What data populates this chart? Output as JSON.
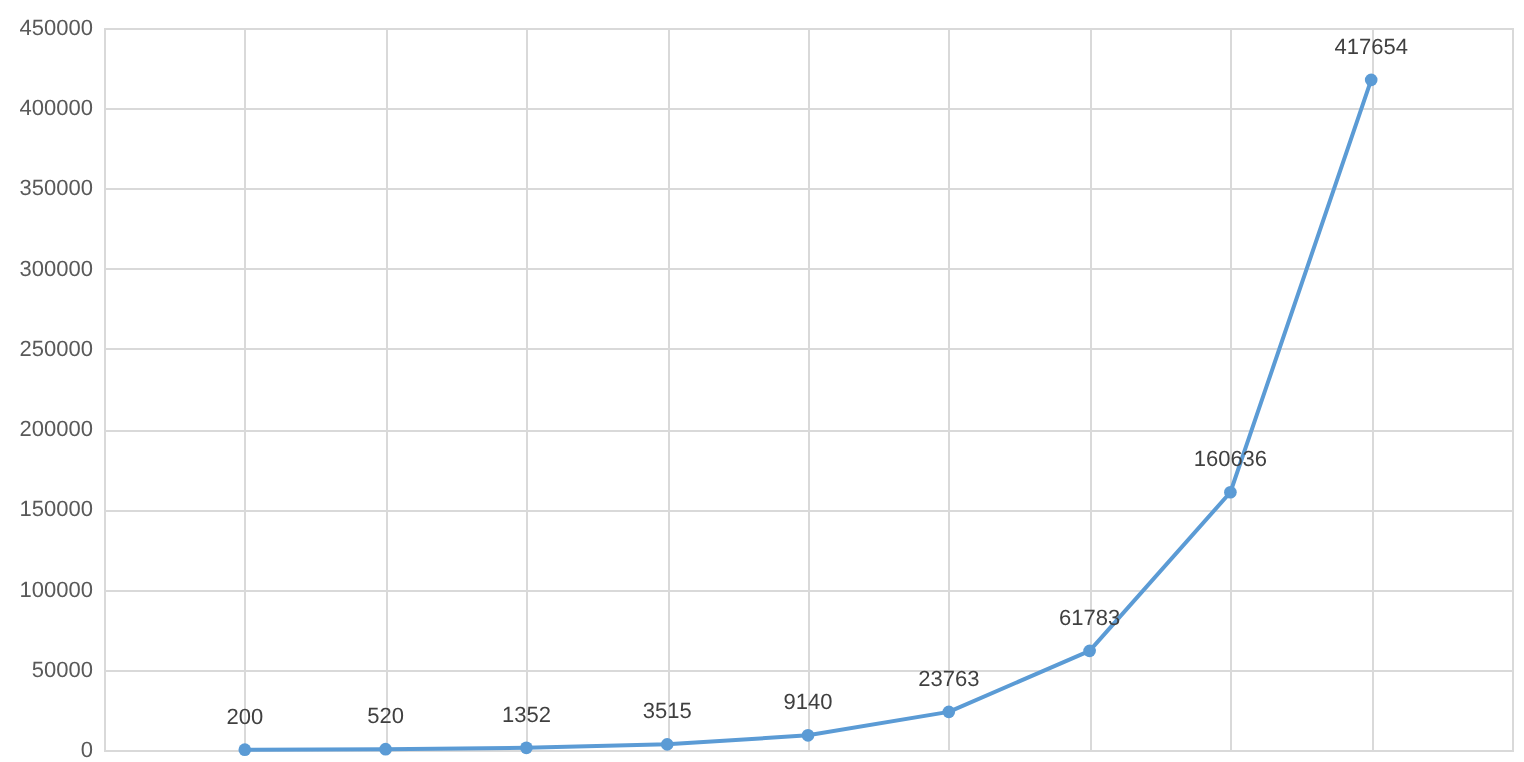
{
  "chart_data": {
    "type": "line",
    "categories": [
      null,
      null,
      null,
      null,
      null,
      null,
      null,
      null,
      null
    ],
    "series": [
      {
        "color": "#5b9bd5",
        "values": [
          200,
          520,
          1352,
          3515,
          9140,
          23763,
          61783,
          160636,
          417654
        ]
      }
    ],
    "ylim": [
      0,
      450000
    ],
    "yticks": [
      0,
      50000,
      100000,
      150000,
      200000,
      250000,
      300000,
      350000,
      400000,
      450000
    ],
    "grid": true,
    "marker": "circle",
    "data_labels": true,
    "line_style": "solid"
  }
}
